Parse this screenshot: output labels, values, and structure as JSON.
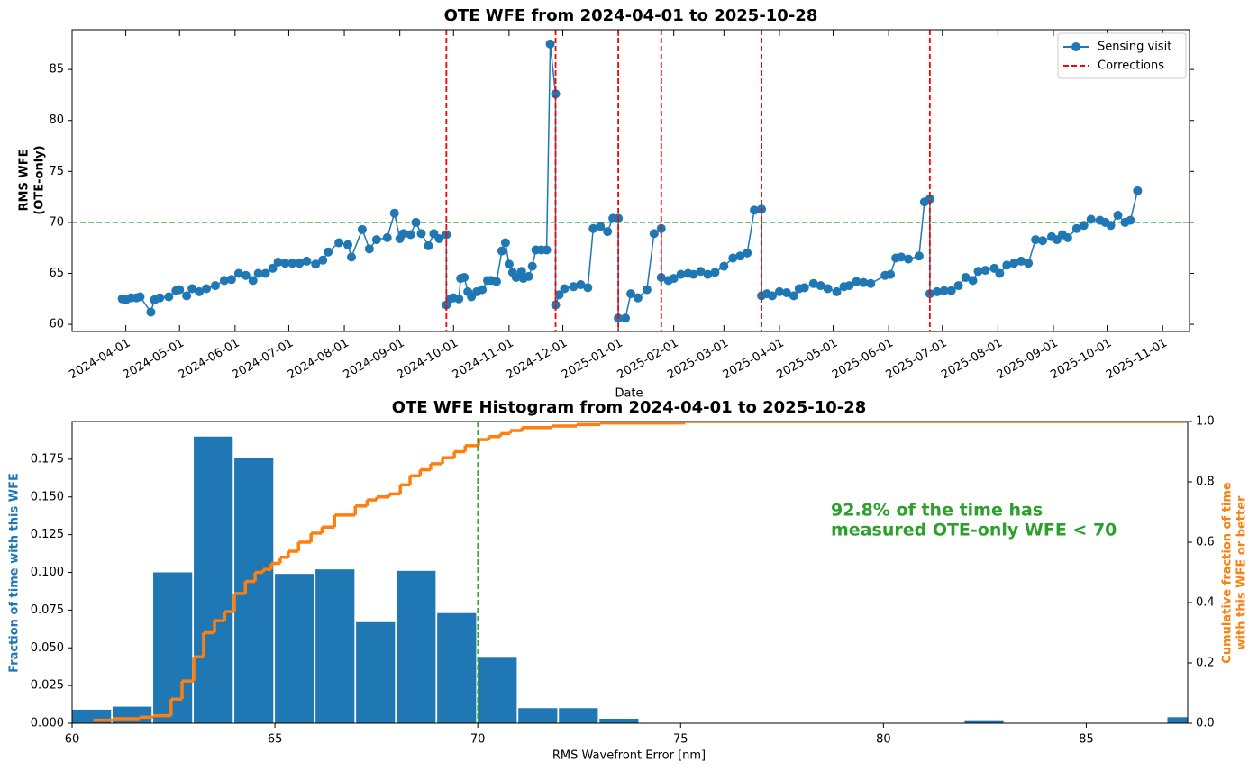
{
  "chart_data": [
    {
      "type": "line",
      "title": "OTE WFE from 2024-04-01 to 2025-10-28",
      "xlabel": "Date",
      "ylabel": [
        "RMS WFE",
        "(OTE-only)"
      ],
      "xlim": [
        "2024-03-02",
        "2025-11-16"
      ],
      "xticks": [
        "2024-04-01",
        "2024-05-01",
        "2024-06-01",
        "2024-07-01",
        "2024-08-01",
        "2024-09-01",
        "2024-10-01",
        "2024-11-01",
        "2024-12-01",
        "2025-01-01",
        "2025-02-01",
        "2025-03-01",
        "2025-04-01",
        "2025-05-01",
        "2025-06-01",
        "2025-07-01",
        "2025-08-01",
        "2025-09-01",
        "2025-10-01",
        "2025-11-01"
      ],
      "ylim": [
        59.3,
        88.9
      ],
      "yticks": [
        60,
        65,
        70,
        75,
        80,
        85
      ],
      "legend": "upper right",
      "x": [
        "2024-03-30",
        "2024-04-01",
        "2024-04-04",
        "2024-04-07",
        "2024-04-09",
        "2024-04-15",
        "2024-04-17",
        "2024-04-20",
        "2024-04-25",
        "2024-04-29",
        "2024-05-01",
        "2024-05-05",
        "2024-05-08",
        "2024-05-12",
        "2024-05-16",
        "2024-05-21",
        "2024-05-26",
        "2024-05-30",
        "2024-06-03",
        "2024-06-07",
        "2024-06-11",
        "2024-06-14",
        "2024-06-18",
        "2024-06-22",
        "2024-06-25",
        "2024-06-29",
        "2024-07-03",
        "2024-07-07",
        "2024-07-11",
        "2024-07-16",
        "2024-07-20",
        "2024-07-23",
        "2024-07-29",
        "2024-08-03",
        "2024-08-05",
        "2024-08-11",
        "2024-08-15",
        "2024-08-19",
        "2024-08-25",
        "2024-08-29",
        "2024-09-01",
        "2024-09-03",
        "2024-09-07",
        "2024-09-10",
        "2024-09-13",
        "2024-09-17",
        "2024-09-20",
        "2024-09-23",
        "2024-09-27",
        "2024-09-27",
        "2024-09-29",
        "2024-10-01",
        "2024-10-04",
        "2024-10-05",
        "2024-10-07",
        "2024-10-09",
        "2024-10-11",
        "2024-10-14",
        "2024-10-17",
        "2024-10-20",
        "2024-10-22",
        "2024-10-25",
        "2024-10-28",
        "2024-10-30",
        "2024-11-01",
        "2024-11-03",
        "2024-11-05",
        "2024-11-08",
        "2024-11-09",
        "2024-11-12",
        "2024-11-14",
        "2024-11-16",
        "2024-11-19",
        "2024-11-22",
        "2024-11-24",
        "2024-11-27",
        "2024-11-27",
        "2024-11-29",
        "2024-12-02",
        "2024-12-07",
        "2024-12-11",
        "2024-12-15",
        "2024-12-18",
        "2024-12-22",
        "2024-12-26",
        "2024-12-29",
        "2025-01-01",
        "2025-01-01",
        "2025-01-05",
        "2025-01-08",
        "2025-01-12",
        "2025-01-17",
        "2025-01-21",
        "2025-01-25",
        "2025-01-25",
        "2025-01-29",
        "2025-02-01",
        "2025-02-05",
        "2025-02-09",
        "2025-02-12",
        "2025-02-16",
        "2025-02-20",
        "2025-02-24",
        "2025-03-01",
        "2025-03-06",
        "2025-03-10",
        "2025-03-14",
        "2025-03-18",
        "2025-03-22",
        "2025-03-22",
        "2025-03-25",
        "2025-03-28",
        "2025-04-01",
        "2025-04-05",
        "2025-04-09",
        "2025-04-12",
        "2025-04-15",
        "2025-04-20",
        "2025-04-24",
        "2025-04-28",
        "2025-05-03",
        "2025-05-07",
        "2025-05-10",
        "2025-05-14",
        "2025-05-18",
        "2025-05-22",
        "2025-05-30",
        "2025-06-02",
        "2025-06-05",
        "2025-06-08",
        "2025-06-12",
        "2025-06-18",
        "2025-06-21",
        "2025-06-24",
        "2025-06-24",
        "2025-06-28",
        "2025-07-02",
        "2025-07-06",
        "2025-07-10",
        "2025-07-14",
        "2025-07-18",
        "2025-07-21",
        "2025-07-25",
        "2025-07-30",
        "2025-08-02",
        "2025-08-06",
        "2025-08-10",
        "2025-08-14",
        "2025-08-18",
        "2025-08-22",
        "2025-08-26",
        "2025-08-31",
        "2025-09-03",
        "2025-09-06",
        "2025-09-09",
        "2025-09-14",
        "2025-09-18",
        "2025-09-22",
        "2025-09-27",
        "2025-09-30",
        "2025-10-03",
        "2025-10-07",
        "2025-10-11",
        "2025-10-14",
        "2025-10-18"
      ],
      "series": [
        {
          "name": "Sensing visit",
          "color": "#1f77b4",
          "values": [
            62.5,
            62.4,
            62.6,
            62.6,
            62.7,
            61.2,
            62.4,
            62.6,
            62.7,
            63.3,
            63.4,
            62.8,
            63.5,
            63.2,
            63.5,
            63.8,
            64.3,
            64.4,
            65.0,
            64.8,
            64.3,
            65.0,
            65.0,
            65.5,
            66.1,
            66.0,
            66.0,
            66.0,
            66.2,
            65.9,
            66.3,
            67.1,
            68.0,
            67.8,
            66.6,
            69.3,
            67.4,
            68.3,
            68.5,
            70.9,
            68.4,
            68.9,
            68.8,
            70.0,
            68.9,
            67.7,
            68.9,
            68.4,
            68.8,
            61.9,
            62.5,
            62.6,
            62.5,
            64.5,
            64.6,
            63.2,
            62.7,
            63.2,
            63.4,
            64.3,
            64.3,
            64.2,
            67.2,
            68.0,
            65.9,
            65.1,
            64.6,
            65.2,
            64.5,
            64.7,
            65.7,
            67.3,
            67.3,
            67.3,
            87.5,
            82.6,
            61.9,
            62.9,
            63.5,
            63.7,
            63.9,
            63.6,
            69.4,
            69.6,
            69.1,
            70.4,
            70.4,
            60.6,
            60.6,
            63.0,
            62.6,
            63.4,
            68.9,
            69.4,
            64.6,
            64.3,
            64.5,
            64.9,
            65.0,
            64.9,
            65.2,
            64.9,
            65.1,
            65.7,
            66.5,
            66.7,
            67.0,
            71.2,
            71.3,
            62.8,
            63.0,
            62.8,
            63.2,
            63.1,
            62.8,
            63.5,
            63.6,
            64.0,
            63.8,
            63.5,
            63.2,
            63.7,
            63.8,
            64.2,
            64.1,
            64.0,
            64.8,
            64.9,
            66.5,
            66.6,
            66.4,
            66.7,
            72.0,
            72.3,
            63.0,
            63.2,
            63.3,
            63.3,
            63.8,
            64.6,
            64.3,
            65.2,
            65.3,
            65.5,
            65.0,
            65.8,
            66.0,
            66.2,
            66.0,
            68.3,
            68.2,
            68.6,
            68.3,
            68.8,
            68.5,
            69.4,
            69.7,
            70.3,
            70.2,
            70.0,
            69.7,
            70.7,
            70.0,
            70.2,
            73.1
          ]
        }
      ],
      "vlines": {
        "name": "Corrections",
        "color": "#ff0000",
        "x": [
          "2024-09-27",
          "2024-11-27",
          "2025-01-01",
          "2025-01-25",
          "2025-03-22",
          "2025-06-24"
        ]
      },
      "hlines": [
        {
          "value": 70,
          "color": "#2ca02c"
        }
      ]
    },
    {
      "type": "histogram",
      "title": "OTE WFE Histogram from 2024-04-01 to 2025-10-28",
      "xlabel": "RMS Wavefront Error [nm]",
      "ylabel": "Fraction of time with this WFE",
      "ylabel_color": "#1f77b4",
      "y2label": [
        "Cumulative fraction of time",
        "with this WFE or better"
      ],
      "y2label_color": "#ff7f0e",
      "color": "#1f77b4",
      "bins": [
        60,
        61,
        62,
        63,
        64,
        65,
        66,
        67,
        68,
        69,
        70,
        71,
        72,
        73,
        74,
        75,
        76,
        77,
        78,
        79,
        80,
        81,
        82,
        83,
        84,
        85,
        86,
        87,
        88
      ],
      "values": [
        0.009,
        0.011,
        0.1,
        0.19,
        0.176,
        0.099,
        0.102,
        0.067,
        0.101,
        0.073,
        0.044,
        0.01,
        0.01,
        0.003,
        0,
        0,
        0,
        0,
        0,
        0,
        0,
        0,
        0.002,
        0,
        0,
        0,
        0,
        0.004
      ],
      "xlim": [
        60,
        87.5
      ],
      "xticks": [
        60,
        65,
        70,
        75,
        80,
        85
      ],
      "ylim": [
        0,
        0.2
      ],
      "yticks": [
        {
          "value": 0,
          "label": "0.000"
        },
        {
          "value": 0.025,
          "label": "0.025"
        },
        {
          "value": 0.05,
          "label": "0.050"
        },
        {
          "value": 0.075,
          "label": "0.075"
        },
        {
          "value": 0.1,
          "label": "0.100"
        },
        {
          "value": 0.125,
          "label": "0.125"
        },
        {
          "value": 0.15,
          "label": "0.150"
        },
        {
          "value": 0.175,
          "label": "0.175"
        }
      ],
      "y2lim": [
        0,
        1
      ],
      "y2ticks": [
        {
          "value": 0,
          "label": "0.0"
        },
        {
          "value": 0.2,
          "label": "0.2"
        },
        {
          "value": 0.4,
          "label": "0.4"
        },
        {
          "value": 0.6,
          "label": "0.6"
        },
        {
          "value": 0.8,
          "label": "0.8"
        },
        {
          "value": 1,
          "label": "1.0"
        }
      ],
      "series": [
        {
          "axis": "y2",
          "color": "#ff7f0e",
          "x": [
            60.53,
            61.0,
            61.67,
            62.0,
            62.44,
            62.71,
            63.0,
            63.24,
            63.51,
            63.76,
            64.0,
            64.27,
            64.51,
            64.71,
            64.91,
            65.13,
            65.33,
            65.58,
            65.89,
            66.16,
            66.47,
            66.98,
            67.27,
            67.51,
            67.82,
            68.09,
            68.33,
            68.58,
            68.84,
            69.13,
            69.42,
            69.69,
            70.02,
            70.27,
            70.56,
            70.8,
            71.09,
            71.84,
            72.44,
            73.02,
            75.11,
            87.5
          ],
          "values": [
            0.01,
            0.015,
            0.02,
            0.025,
            0.08,
            0.14,
            0.22,
            0.3,
            0.34,
            0.37,
            0.43,
            0.47,
            0.5,
            0.51,
            0.53,
            0.55,
            0.57,
            0.6,
            0.63,
            0.65,
            0.69,
            0.72,
            0.74,
            0.75,
            0.76,
            0.79,
            0.82,
            0.84,
            0.86,
            0.88,
            0.9,
            0.92,
            0.94,
            0.95,
            0.96,
            0.97,
            0.98,
            0.985,
            0.99,
            0.995,
            1.0,
            1.0
          ]
        }
      ],
      "vlines": [
        {
          "value": 70,
          "color": "#2ca02c"
        }
      ],
      "annotation": [
        "92.8% of the time has",
        "measured OTE-only WFE < 70"
      ],
      "annotation_color": "#2ca02c"
    }
  ]
}
